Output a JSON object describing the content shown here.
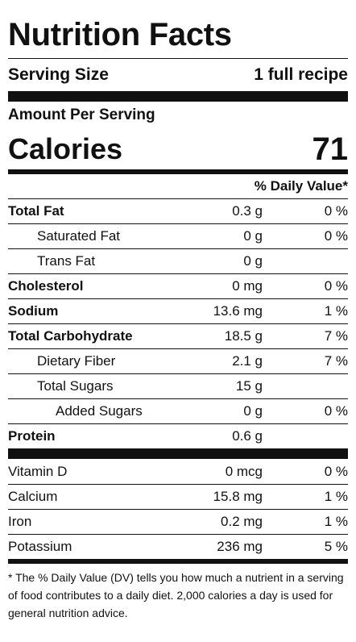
{
  "title": "Nutrition Facts",
  "serving": {
    "label": "Serving Size",
    "value": "1 full recipe"
  },
  "amount_per_serving": "Amount Per Serving",
  "calories": {
    "label": "Calories",
    "value": "71"
  },
  "daily_value_header": "% Daily Value*",
  "nutrients": [
    {
      "name": "Total Fat",
      "amount": "0.3 g",
      "dv": "0 %"
    },
    {
      "name": "Saturated Fat",
      "amount": "0 g",
      "dv": "0 %"
    },
    {
      "name": "Trans Fat",
      "amount": "0 g",
      "dv": ""
    },
    {
      "name": "Cholesterol",
      "amount": "0 mg",
      "dv": "0 %"
    },
    {
      "name": "Sodium",
      "amount": "13.6 mg",
      "dv": "1 %"
    },
    {
      "name": "Total Carbohydrate",
      "amount": "18.5 g",
      "dv": "7 %"
    },
    {
      "name": "Dietary Fiber",
      "amount": "2.1 g",
      "dv": "7 %"
    },
    {
      "name": "Total Sugars",
      "amount": "15 g",
      "dv": ""
    },
    {
      "name": "Added Sugars",
      "amount": "0 g",
      "dv": "0 %"
    },
    {
      "name": "Protein",
      "amount": "0.6 g",
      "dv": ""
    }
  ],
  "vitamins": [
    {
      "name": "Vitamin D",
      "amount": "0 mcg",
      "dv": "0 %"
    },
    {
      "name": "Calcium",
      "amount": "15.8 mg",
      "dv": "1 %"
    },
    {
      "name": "Iron",
      "amount": "0.2 mg",
      "dv": "1 %"
    },
    {
      "name": "Potassium",
      "amount": "236 mg",
      "dv": "5 %"
    }
  ],
  "footnote": "* The % Daily Value (DV) tells you how much a nutrient in a serving of food contributes to a daily diet. 2,000 calories a day is used for general nutrition advice."
}
